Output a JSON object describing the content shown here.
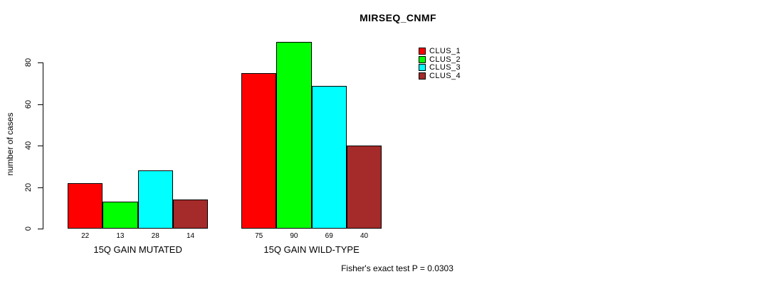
{
  "chart_data": {
    "type": "bar",
    "title": "MIRSEQ_CNMF",
    "ylabel": "number of cases",
    "xlabel": "",
    "categories": [
      "15Q GAIN MUTATED",
      "15Q GAIN WILD-TYPE"
    ],
    "series": [
      {
        "name": "CLUS_1",
        "color": "#ff0000",
        "values": [
          22,
          75
        ]
      },
      {
        "name": "CLUS_2",
        "color": "#00ff00",
        "values": [
          13,
          90
        ]
      },
      {
        "name": "CLUS_3",
        "color": "#00ffff",
        "values": [
          28,
          69
        ]
      },
      {
        "name": "CLUS_4",
        "color": "#a52a2a",
        "values": [
          14,
          40
        ]
      }
    ],
    "yticks": [
      0,
      20,
      40,
      60,
      80
    ],
    "ylim": [
      0,
      90
    ],
    "grid": false,
    "bar_value_labels_shown": true,
    "legend_position": "top-right",
    "annotation": "Fisher's exact test P = 0.0303"
  },
  "colors": {
    "background": "#ffffff",
    "axis": "#000000",
    "text": "#000000"
  }
}
